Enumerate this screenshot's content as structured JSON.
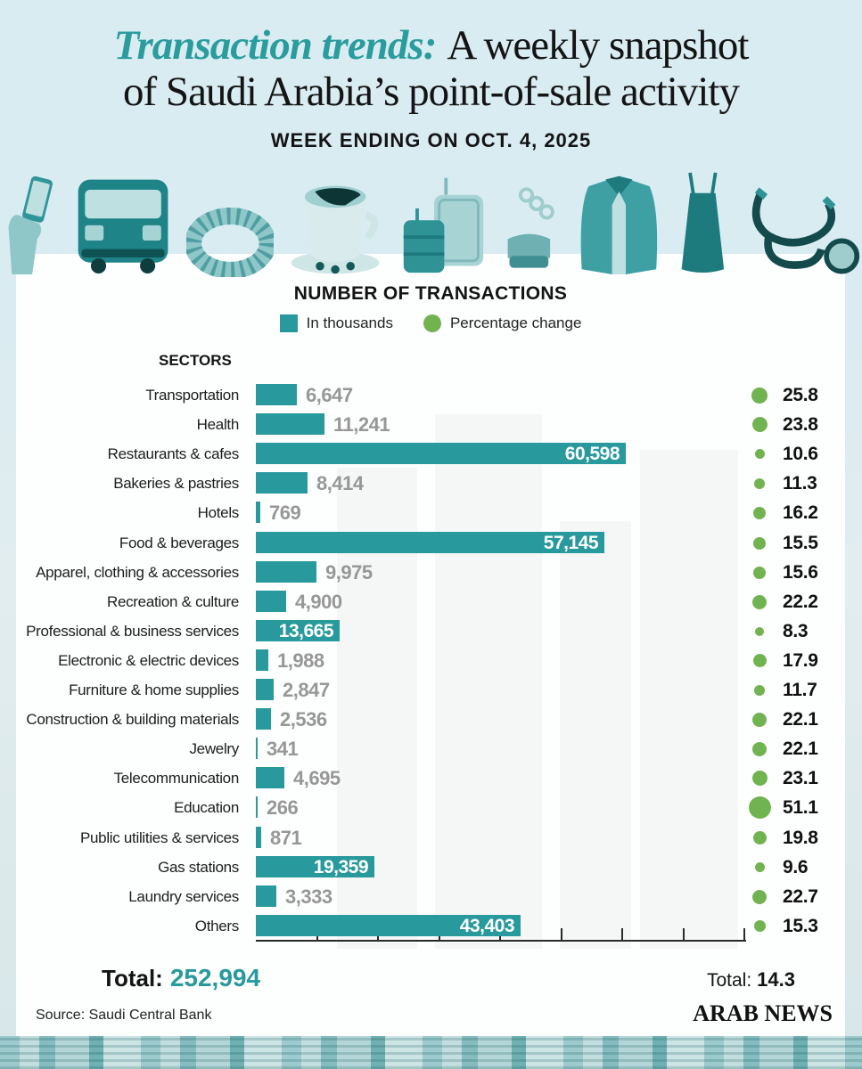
{
  "header": {
    "title_accent": "Transaction trends:",
    "title_line1": "A weekly snapshot",
    "title_line2": "of Saudi Arabia’s point-of-sale activity",
    "subtitle": "WEEK ENDING ON OCT. 4, 2025"
  },
  "icons": [
    "phone-payment",
    "bus",
    "bracelet",
    "coffee-cup",
    "luggage",
    "heels",
    "jacket",
    "dress",
    "stethoscope"
  ],
  "chart": {
    "title": "NUMBER OF TRANSACTIONS",
    "legend": [
      {
        "label": "In thousands",
        "shape": "square",
        "color": "#28999c"
      },
      {
        "label": "Percentage change",
        "shape": "circle",
        "color": "#72b351"
      }
    ],
    "sectors_label": "SECTORS"
  },
  "chart_data": {
    "type": "bar",
    "orientation": "horizontal",
    "categories": [
      "Transportation",
      "Health",
      "Restaurants & cafes",
      "Bakeries & pastries",
      "Hotels",
      "Food & beverages",
      "Apparel, clothing & accessories",
      "Recreation & culture",
      "Professional & business services",
      "Electronic & electric devices",
      "Furniture & home supplies",
      "Construction & building materials",
      "Jewelry",
      "Telecommunication",
      "Education",
      "Public utilities & services",
      "Gas stations",
      "Laundry services",
      "Others"
    ],
    "series": [
      {
        "name": "In thousands",
        "values": [
          6647,
          11241,
          60598,
          8414,
          769,
          57145,
          9975,
          4900,
          13665,
          1988,
          2847,
          2536,
          341,
          4695,
          266,
          871,
          19359,
          3333,
          43403
        ]
      },
      {
        "name": "Percentage change",
        "values": [
          25.8,
          23.8,
          10.6,
          11.3,
          16.2,
          15.5,
          15.6,
          22.2,
          8.3,
          17.9,
          11.7,
          22.1,
          22.1,
          23.1,
          51.1,
          19.8,
          9.6,
          22.7,
          15.3
        ]
      }
    ],
    "value_labels": [
      "6,647",
      "11,241",
      "60,598",
      "8,414",
      "769",
      "57,145",
      "9,975",
      "4,900",
      "13,665",
      "1,988",
      "2,847",
      "2,536",
      "341",
      "4,695",
      "266",
      "871",
      "19,359",
      "3,333",
      "43,403"
    ],
    "pct_labels": [
      "25.8",
      "23.8",
      "10.6",
      "11.3",
      "16.2",
      "15.5",
      "15.6",
      "22.2",
      "8.3",
      "17.9",
      "11.7",
      "22.1",
      "22.1",
      "23.1",
      "51.1",
      "19.8",
      "9.6",
      "22.7",
      "15.3"
    ],
    "xlim": [
      0,
      80000
    ],
    "tick_interval": 10000,
    "grid": false,
    "legend_position": "top"
  },
  "totals": {
    "transactions_label": "Total:",
    "transactions_value": "252,994",
    "percentage_label": "Total:",
    "percentage_value": "14.3"
  },
  "footer": {
    "source": "Source: Saudi Central Bank",
    "brand": "ARAB NEWS"
  },
  "colors": {
    "background": "#d9ecf2",
    "panel": "#fdfefe",
    "teal": "#28999c",
    "green": "#72b351",
    "value_gray": "#979797",
    "text_black": "#141414"
  }
}
